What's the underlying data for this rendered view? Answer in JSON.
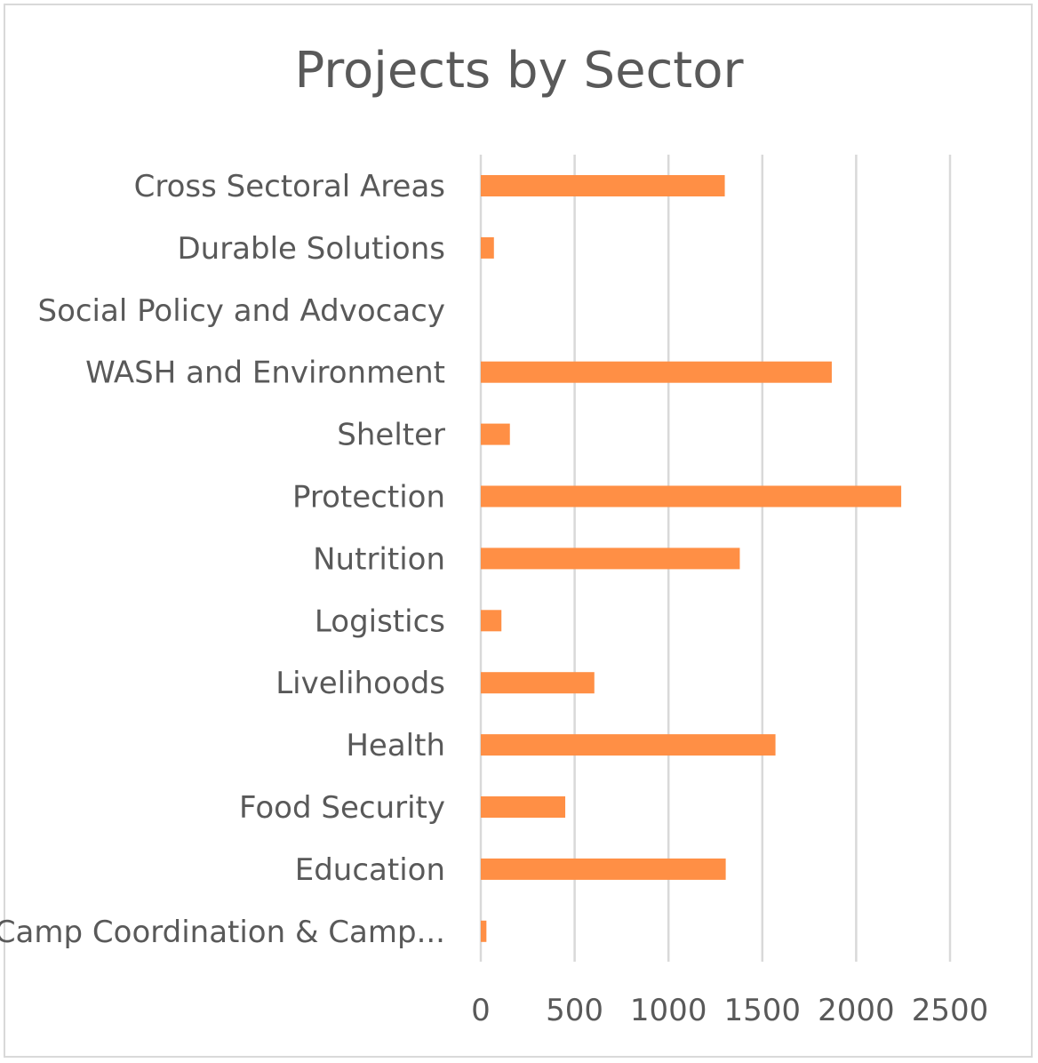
{
  "chart_data": {
    "type": "bar",
    "orientation": "horizontal",
    "title": "Projects by Sector",
    "categories": [
      "Cross Sectoral Areas",
      "Durable Solutions",
      "Social Policy and Advocacy",
      "WASH and Environment",
      "Shelter",
      "Protection",
      "Nutrition",
      "Logistics",
      "Livelihoods",
      "Health",
      "Food Security",
      "Education",
      "Camp Coordination & Camp..."
    ],
    "values": [
      1300,
      70,
      0,
      1870,
      155,
      2240,
      1380,
      110,
      605,
      1570,
      450,
      1305,
      30
    ],
    "xlim": [
      0,
      2500
    ],
    "xticks": [
      0,
      500,
      1000,
      1500,
      2000,
      2500
    ],
    "xlabel": "",
    "ylabel": "",
    "grid": "vertical",
    "legend": "none",
    "bar_color": "#FF8F45",
    "gridline_color": "#d9d9d9",
    "text_color": "#595959"
  }
}
